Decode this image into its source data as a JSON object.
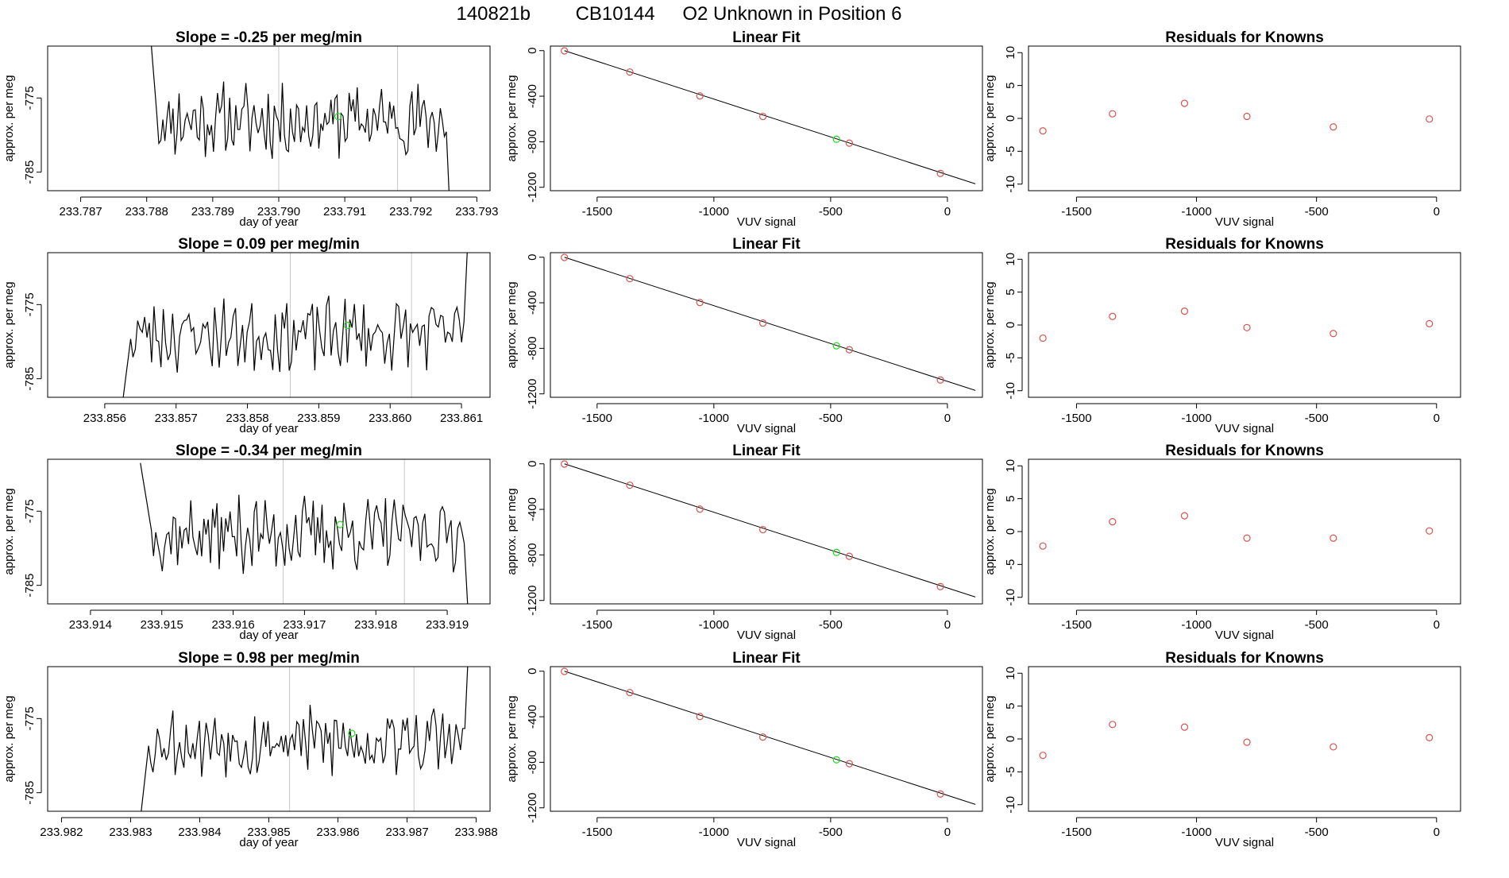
{
  "header": {
    "run_id": "140821b",
    "cylinder": "CB10144",
    "description": "O2 Unknown in Position  6"
  },
  "colors": {
    "line": "#000000",
    "known_point": "#d9534f",
    "unknown_point": "#22dd22",
    "marker_line": "#c8c8c8"
  },
  "chart_data": [
    {
      "type": "line",
      "row": 1,
      "panel": "time-series",
      "title": "Slope =  -0.25  per meg/min",
      "xlabel": "day of year",
      "ylabel": "approx. per meg",
      "xlim": [
        233.7865,
        233.7932
      ],
      "ylim": [
        -787.5,
        -768
      ],
      "xticks": [
        233.787,
        233.788,
        233.789,
        233.79,
        233.791,
        233.792,
        233.793
      ],
      "xtick_labels": [
        "233.787",
        "233.788",
        "233.789",
        "233.790",
        "233.791",
        "233.792",
        "233.793"
      ],
      "yticks": [
        -775,
        -785
      ],
      "ytick_labels": [
        "-775",
        "-785"
      ],
      "x_start": 233.788,
      "x_end": 233.7926,
      "start_value": -760,
      "end_value": -792,
      "base_level": -778,
      "seed": 11,
      "vlines": [
        233.79,
        233.7918
      ],
      "unknown_point": {
        "x": 233.7909,
        "y": -777.5
      }
    },
    {
      "type": "scatter",
      "row": 1,
      "panel": "linear-fit",
      "title": "Linear Fit",
      "xlabel": "VUV signal",
      "ylabel": "approx. per meg",
      "xlim": [
        -1700,
        150
      ],
      "ylim": [
        -1230,
        40
      ],
      "xticks": [
        -1500,
        -1000,
        -500,
        0
      ],
      "xtick_labels": [
        "-1500",
        "-1000",
        "-500",
        "0"
      ],
      "yticks": [
        0,
        -400,
        -800,
        -1200
      ],
      "ytick_labels": [
        "0",
        "-400",
        "-800",
        "-1200"
      ],
      "line": {
        "x1": -1640,
        "y1": 0,
        "x2": 120,
        "y2": -1170
      },
      "known_x": [
        -1640,
        -1360,
        -1060,
        -790,
        -420,
        -30
      ],
      "known_y": [
        -2,
        -188,
        -398,
        -578,
        -812,
        -1078
      ],
      "unknown_point": {
        "x": -475,
        "y": -778
      }
    },
    {
      "type": "scatter",
      "row": 1,
      "panel": "residuals",
      "title": "Residuals for Knowns",
      "xlabel": "VUV signal",
      "ylabel": "approx. per meg",
      "xlim": [
        -1700,
        100
      ],
      "ylim": [
        -11,
        11
      ],
      "xticks": [
        -1500,
        -1000,
        -500,
        0
      ],
      "xtick_labels": [
        "-1500",
        "-1000",
        "-500",
        "0"
      ],
      "yticks": [
        10,
        5,
        0,
        -5,
        -10
      ],
      "ytick_labels": [
        "10",
        "5",
        "0",
        "-5",
        "-10"
      ],
      "known_x": [
        -1640,
        -1350,
        -1050,
        -790,
        -430,
        -30
      ],
      "values": [
        -1.9,
        0.7,
        2.3,
        0.3,
        -1.3,
        -0.1
      ]
    },
    {
      "type": "line",
      "row": 2,
      "panel": "time-series",
      "title": "Slope =  0.09  per meg/min",
      "xlabel": "day of year",
      "ylabel": "approx. per meg",
      "xlim": [
        233.8552,
        233.8614
      ],
      "ylim": [
        -787.5,
        -768
      ],
      "xticks": [
        233.856,
        233.857,
        233.858,
        233.859,
        233.86,
        233.861
      ],
      "xtick_labels": [
        "233.856",
        "233.857",
        "233.858",
        "233.859",
        "233.860",
        "233.861"
      ],
      "yticks": [
        -775,
        -785
      ],
      "ytick_labels": [
        "-775",
        "-785"
      ],
      "x_start": 233.8562,
      "x_end": 233.8611,
      "start_value": -792,
      "end_value": -764,
      "base_level": -779,
      "seed": 23,
      "vlines": [
        233.8586,
        233.8603
      ],
      "unknown_point": {
        "x": 233.8594,
        "y": -777.8
      }
    },
    {
      "type": "scatter",
      "row": 2,
      "panel": "linear-fit",
      "title": "Linear Fit",
      "xlabel": "VUV signal",
      "ylabel": "approx. per meg",
      "xlim": [
        -1700,
        150
      ],
      "ylim": [
        -1230,
        40
      ],
      "xticks": [
        -1500,
        -1000,
        -500,
        0
      ],
      "xtick_labels": [
        "-1500",
        "-1000",
        "-500",
        "0"
      ],
      "yticks": [
        0,
        -400,
        -800,
        -1200
      ],
      "ytick_labels": [
        "0",
        "-400",
        "-800",
        "-1200"
      ],
      "line": {
        "x1": -1640,
        "y1": 0,
        "x2": 120,
        "y2": -1170
      },
      "known_x": [
        -1640,
        -1360,
        -1060,
        -790,
        -420,
        -30
      ],
      "known_y": [
        -2,
        -188,
        -398,
        -578,
        -812,
        -1078
      ],
      "unknown_point": {
        "x": -475,
        "y": -778
      }
    },
    {
      "type": "scatter",
      "row": 2,
      "panel": "residuals",
      "title": "Residuals for Knowns",
      "xlabel": "VUV signal",
      "ylabel": "approx. per meg",
      "xlim": [
        -1700,
        100
      ],
      "ylim": [
        -11,
        11
      ],
      "xticks": [
        -1500,
        -1000,
        -500,
        0
      ],
      "xtick_labels": [
        "-1500",
        "-1000",
        "-500",
        "0"
      ],
      "yticks": [
        10,
        5,
        0,
        -5,
        -10
      ],
      "ytick_labels": [
        "10",
        "5",
        "0",
        "-5",
        "-10"
      ],
      "known_x": [
        -1640,
        -1350,
        -1050,
        -790,
        -430,
        -30
      ],
      "values": [
        -2.0,
        1.3,
        2.1,
        -0.4,
        -1.3,
        0.2
      ]
    },
    {
      "type": "line",
      "row": 3,
      "panel": "time-series",
      "title": "Slope =  -0.34  per meg/min",
      "xlabel": "day of year",
      "ylabel": "approx. per meg",
      "xlim": [
        233.9134,
        233.9196
      ],
      "ylim": [
        -787.5,
        -768
      ],
      "xticks": [
        233.914,
        233.915,
        233.916,
        233.917,
        233.918,
        233.919
      ],
      "xtick_labels": [
        "233.914",
        "233.915",
        "233.916",
        "233.917",
        "233.918",
        "233.919"
      ],
      "yticks": [
        -775,
        -785
      ],
      "ytick_labels": [
        "-775",
        "-785"
      ],
      "x_start": 233.9147,
      "x_end": 233.9193,
      "start_value": -768.5,
      "end_value": -790,
      "base_level": -778,
      "seed": 37,
      "vlines": [
        233.9167,
        233.9184
      ],
      "unknown_point": {
        "x": 233.9175,
        "y": -776.8
      }
    },
    {
      "type": "scatter",
      "row": 3,
      "panel": "linear-fit",
      "title": "Linear Fit",
      "xlabel": "VUV signal",
      "ylabel": "approx. per meg",
      "xlim": [
        -1700,
        150
      ],
      "ylim": [
        -1230,
        40
      ],
      "xticks": [
        -1500,
        -1000,
        -500,
        0
      ],
      "xtick_labels": [
        "-1500",
        "-1000",
        "-500",
        "0"
      ],
      "yticks": [
        0,
        -400,
        -800,
        -1200
      ],
      "ytick_labels": [
        "0",
        "-400",
        "-800",
        "-1200"
      ],
      "line": {
        "x1": -1640,
        "y1": 0,
        "x2": 120,
        "y2": -1170
      },
      "known_x": [
        -1640,
        -1360,
        -1060,
        -790,
        -420,
        -30
      ],
      "known_y": [
        -2,
        -188,
        -398,
        -578,
        -812,
        -1078
      ],
      "unknown_point": {
        "x": -475,
        "y": -778
      }
    },
    {
      "type": "scatter",
      "row": 3,
      "panel": "residuals",
      "title": "Residuals for Knowns",
      "xlabel": "VUV signal",
      "ylabel": "approx. per meg",
      "xlim": [
        -1700,
        100
      ],
      "ylim": [
        -11,
        11
      ],
      "xticks": [
        -1500,
        -1000,
        -500,
        0
      ],
      "xtick_labels": [
        "-1500",
        "-1000",
        "-500",
        "0"
      ],
      "yticks": [
        10,
        5,
        0,
        -5,
        -10
      ],
      "ytick_labels": [
        "10",
        "5",
        "0",
        "-5",
        "-10"
      ],
      "known_x": [
        -1640,
        -1350,
        -1050,
        -790,
        -430,
        -30
      ],
      "values": [
        -2.2,
        1.5,
        2.4,
        -1.0,
        -1.0,
        0.1
      ]
    },
    {
      "type": "line",
      "row": 4,
      "panel": "time-series",
      "title": "Slope =  0.98  per meg/min",
      "xlabel": "day of year",
      "ylabel": "approx. per meg",
      "xlim": [
        233.9818,
        233.9882
      ],
      "ylim": [
        -787.5,
        -768
      ],
      "xticks": [
        233.982,
        233.983,
        233.984,
        233.985,
        233.986,
        233.987,
        233.988
      ],
      "xtick_labels": [
        "233.982",
        "233.983",
        "233.984",
        "233.985",
        "233.986",
        "233.987",
        "233.988"
      ],
      "yticks": [
        -775,
        -785
      ],
      "ytick_labels": [
        "-775",
        "-785"
      ],
      "x_start": 233.9831,
      "x_end": 233.9879,
      "start_value": -792,
      "end_value": -763,
      "base_level": -778,
      "seed": 53,
      "vlines": [
        233.9853,
        233.9871
      ],
      "unknown_point": {
        "x": 233.9862,
        "y": -777
      }
    },
    {
      "type": "scatter",
      "row": 4,
      "panel": "linear-fit",
      "title": "Linear Fit",
      "xlabel": "VUV signal",
      "ylabel": "approx. per meg",
      "xlim": [
        -1700,
        150
      ],
      "ylim": [
        -1230,
        40
      ],
      "xticks": [
        -1500,
        -1000,
        -500,
        0
      ],
      "xtick_labels": [
        "-1500",
        "-1000",
        "-500",
        "0"
      ],
      "yticks": [
        0,
        -400,
        -800,
        -1200
      ],
      "ytick_labels": [
        "0",
        "-400",
        "-800",
        "-1200"
      ],
      "line": {
        "x1": -1640,
        "y1": 0,
        "x2": 120,
        "y2": -1170
      },
      "known_x": [
        -1640,
        -1360,
        -1060,
        -790,
        -420,
        -30
      ],
      "known_y": [
        -2,
        -188,
        -398,
        -578,
        -812,
        -1078
      ],
      "unknown_point": {
        "x": -475,
        "y": -778
      }
    },
    {
      "type": "scatter",
      "row": 4,
      "panel": "residuals",
      "title": "Residuals for Knowns",
      "xlabel": "VUV signal",
      "ylabel": "approx. per meg",
      "xlim": [
        -1700,
        100
      ],
      "ylim": [
        -11,
        11
      ],
      "xticks": [
        -1500,
        -1000,
        -500,
        0
      ],
      "xtick_labels": [
        "-1500",
        "-1000",
        "-500",
        "0"
      ],
      "yticks": [
        10,
        5,
        0,
        -5,
        -10
      ],
      "ytick_labels": [
        "10",
        "5",
        "0",
        "-5",
        "-10"
      ],
      "known_x": [
        -1640,
        -1350,
        -1050,
        -790,
        -430,
        -30
      ],
      "values": [
        -2.5,
        2.2,
        1.8,
        -0.5,
        -1.2,
        0.2
      ]
    }
  ]
}
